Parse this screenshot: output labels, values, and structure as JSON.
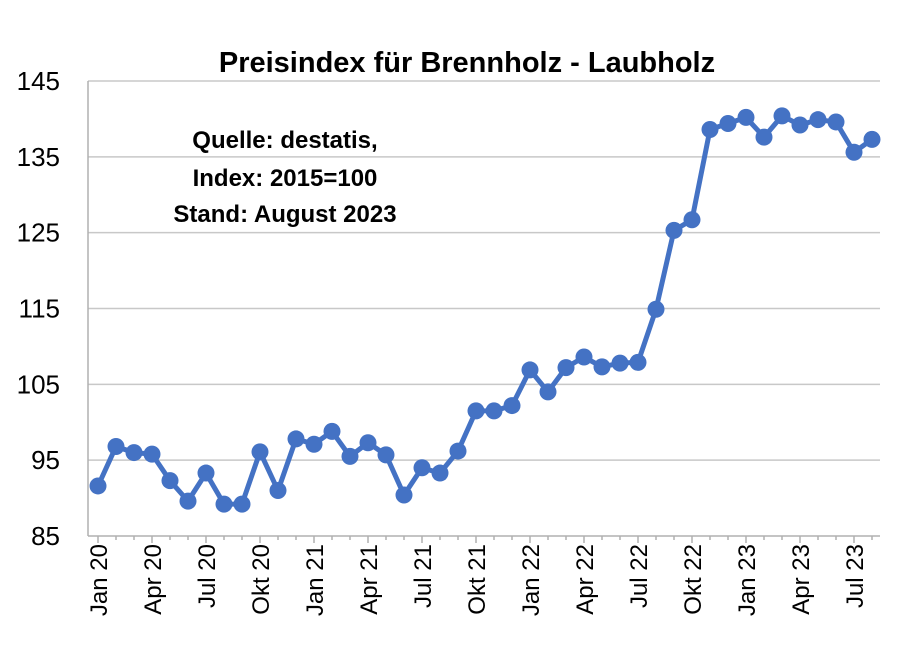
{
  "chart_data": {
    "type": "line",
    "title": "Preisindex für Brennholz - Laubholz",
    "annotation_lines": [
      "Quelle: destatis,",
      "Index: 2015=100",
      "Stand: August  2023"
    ],
    "xlabel": "",
    "ylabel": "",
    "ylim": [
      85,
      145
    ],
    "yticks": [
      "85",
      "95",
      "105",
      "115",
      "125",
      "135",
      "145"
    ],
    "grid": true,
    "color": "#4472C4",
    "x": [
      "Jan 20",
      "Feb 20",
      "Mär 20",
      "Apr 20",
      "Mai 20",
      "Jun 20",
      "Jul 20",
      "Aug 20",
      "Sep 20",
      "Okt 20",
      "Nov 20",
      "Dez 20",
      "Jan 21",
      "Feb 21",
      "Mär 21",
      "Apr 21",
      "Mai 21",
      "Jun 21",
      "Jul 21",
      "Aug 21",
      "Sep 21",
      "Okt 21",
      "Nov 21",
      "Dez 21",
      "Jan 22",
      "Feb 22",
      "Mär 22",
      "Apr 22",
      "Mai 22",
      "Jun 22",
      "Jul 22",
      "Aug 22",
      "Sep 22",
      "Okt 22",
      "Nov 22",
      "Dez 22",
      "Jan 23",
      "Feb 23",
      "Mär 23",
      "Apr 23",
      "Mai 23",
      "Jun 23",
      "Jul 23",
      "Aug 23"
    ],
    "xtick_labels": [
      {
        "index": 0,
        "label": "Jan 20"
      },
      {
        "index": 3,
        "label": "Apr 20"
      },
      {
        "index": 6,
        "label": "Jul 20"
      },
      {
        "index": 9,
        "label": "Okt 20"
      },
      {
        "index": 12,
        "label": "Jan 21"
      },
      {
        "index": 15,
        "label": "Apr 21"
      },
      {
        "index": 18,
        "label": "Jul 21"
      },
      {
        "index": 21,
        "label": "Okt 21"
      },
      {
        "index": 24,
        "label": "Jan 22"
      },
      {
        "index": 27,
        "label": "Apr 22"
      },
      {
        "index": 30,
        "label": "Jul 22"
      },
      {
        "index": 33,
        "label": "Okt 22"
      },
      {
        "index": 36,
        "label": "Jan 23"
      },
      {
        "index": 39,
        "label": "Apr 23"
      },
      {
        "index": 42,
        "label": "Jul 23"
      }
    ],
    "series": [
      {
        "values": [
          91.6,
          96.8,
          96.0,
          95.8,
          92.3,
          89.6,
          93.3,
          89.2,
          89.2,
          96.1,
          91.0,
          97.8,
          97.1,
          98.8,
          95.5,
          97.3,
          95.7,
          90.4,
          94.0,
          93.3,
          96.2,
          101.5,
          101.5,
          102.2,
          106.9,
          104.0,
          107.2,
          108.6,
          107.3,
          107.8,
          107.9,
          114.9,
          125.3,
          126.7,
          138.6,
          139.4,
          140.2,
          137.6,
          140.4,
          139.2,
          139.9,
          139.6,
          135.6,
          137.3
        ]
      }
    ]
  }
}
